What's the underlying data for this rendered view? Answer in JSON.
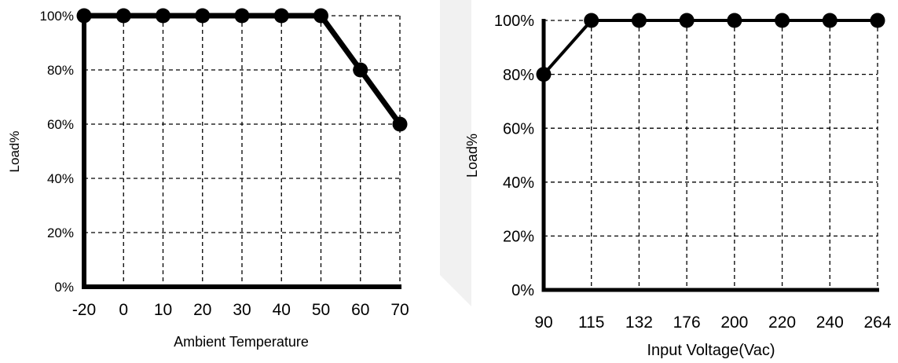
{
  "chart_data": [
    {
      "type": "line",
      "xlabel": "Ambient Temperature",
      "ylabel": "Load%",
      "categories": [
        "-20",
        "0",
        "10",
        "20",
        "30",
        "40",
        "50",
        "60",
        "70"
      ],
      "values": [
        100,
        100,
        100,
        100,
        100,
        100,
        100,
        80,
        60
      ],
      "y_ticks": [
        "0%",
        "20%",
        "40%",
        "60%",
        "80%",
        "100%"
      ],
      "ylim": [
        0,
        100
      ],
      "grid": true,
      "legend": "none"
    },
    {
      "type": "line",
      "xlabel": "Input Voltage(Vac)",
      "ylabel": "Load%",
      "categories": [
        "90",
        "115",
        "132",
        "176",
        "200",
        "220",
        "240",
        "264"
      ],
      "values": [
        80,
        100,
        100,
        100,
        100,
        100,
        100,
        100
      ],
      "y_ticks": [
        "0%",
        "20%",
        "40%",
        "60%",
        "80%",
        "100%"
      ],
      "ylim": [
        0,
        100
      ],
      "grid": true,
      "legend": "none"
    }
  ]
}
